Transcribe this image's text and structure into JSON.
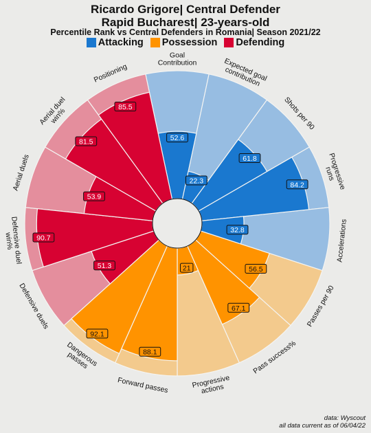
{
  "titles": {
    "line1": "Ricardo Grigore| Central Defender",
    "line2": "Rapid Bucharest| 23-years-old",
    "line3": "Percentile Rank vs Central Defenders in Romania| Season 2021/22"
  },
  "legend": [
    {
      "label": "Attacking",
      "color": "#1a78cf"
    },
    {
      "label": "Possession",
      "color": "#ff9300"
    },
    {
      "label": "Defending",
      "color": "#d70232"
    }
  ],
  "colors": {
    "Attacking": {
      "dark": "#1a78cf",
      "light": "#97bde2"
    },
    "Possession": {
      "dark": "#ff9300",
      "light": "#f3ca8d"
    },
    "Defending": {
      "dark": "#d70232",
      "light": "#e48e9d"
    },
    "background": "#ebebe9"
  },
  "chart_data": {
    "type": "polar_bar",
    "rlim": [
      0,
      100
    ],
    "categories": [
      "Goal\nContribution",
      "Expected goal\ncontribution",
      "Shots per 90",
      "Progressive\nruns",
      "Accelerations",
      "Passes per 90",
      "Pass success%",
      "Progressive\nactions",
      "Forward passes",
      "Dangerous\npasses",
      "Defensive duels",
      "Defensive duel\nwin%",
      "Aerial duels",
      "Aerial duel\nwin%",
      "Positioning"
    ],
    "groups": [
      "Attacking",
      "Attacking",
      "Attacking",
      "Attacking",
      "Attacking",
      "Possession",
      "Possession",
      "Possession",
      "Possession",
      "Possession",
      "Defending",
      "Defending",
      "Defending",
      "Defending",
      "Defending"
    ],
    "values": [
      52.6,
      22.3,
      61.8,
      84.2,
      32.8,
      56.5,
      67.1,
      21,
      88.1,
      92.1,
      51.3,
      90.7,
      53.9,
      81.5,
      85.5
    ],
    "value_labels": [
      "52.6",
      "22.3",
      "61.8",
      "84.2",
      "32.8",
      "56.5",
      "67.1",
      "21",
      "88.1",
      "92.1",
      "51.3",
      "90.7",
      "53.9",
      "81.5",
      "85.5"
    ]
  },
  "footer": {
    "source": "data: Wyscout",
    "note": "all data current as of 06/04/22"
  }
}
